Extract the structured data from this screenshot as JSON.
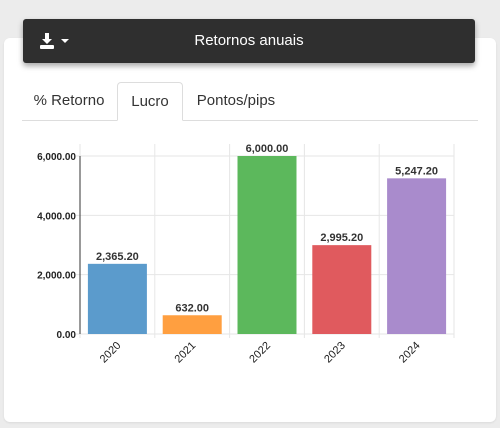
{
  "header": {
    "title": "Retornos anuais",
    "download_icon": "download-icon",
    "caret_icon": "caret-down-icon"
  },
  "tabs": [
    {
      "label": "% Retorno",
      "active": false
    },
    {
      "label": "Lucro",
      "active": true
    },
    {
      "label": "Pontos/pips",
      "active": false
    }
  ],
  "chart_data": {
    "type": "bar",
    "categories": [
      "2020",
      "2021",
      "2022",
      "2023",
      "2024"
    ],
    "values": [
      2365.2,
      632.0,
      6000.0,
      2995.2,
      5247.2
    ],
    "value_labels": [
      "2,365.20",
      "632.00",
      "6,000.00",
      "2,995.20",
      "5,247.20"
    ],
    "colors": [
      "#5b9bcc",
      "#ff9f40",
      "#5cb85c",
      "#e05a5e",
      "#a98bcc"
    ],
    "yticks": [
      0,
      2000,
      4000,
      6000
    ],
    "ytick_labels": [
      "0.00",
      "2,000.00",
      "4,000.00",
      "6,000.00"
    ],
    "ylim": [
      0,
      6000
    ],
    "grid": true,
    "legend": "none"
  }
}
